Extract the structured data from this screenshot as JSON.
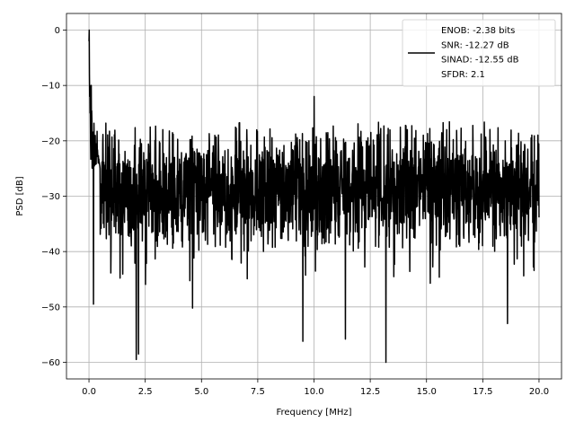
{
  "chart_data": {
    "type": "line",
    "title": "",
    "xlabel": "Frequency [MHz]",
    "ylabel": "PSD [dB]",
    "xlim": [
      -1,
      21
    ],
    "ylim": [
      -63,
      3
    ],
    "x_ticks": [
      0.0,
      2.5,
      5.0,
      7.5,
      10.0,
      12.5,
      15.0,
      17.5,
      20.0
    ],
    "x_tick_labels": [
      "0.0",
      "2.5",
      "5.0",
      "7.5",
      "10.0",
      "12.5",
      "15.0",
      "17.5",
      "20.0"
    ],
    "y_ticks": [
      0,
      -10,
      -20,
      -30,
      -40,
      -50,
      -60
    ],
    "y_tick_labels": [
      "0",
      "−10",
      "−20",
      "−30",
      "−40",
      "−50",
      "−60"
    ],
    "grid": true,
    "legend_position": "top-right",
    "series": [
      {
        "name": "ENOB: -2.38 bits\nSNR: -12.27 dB\nSINAD: -12.55 dB\nSFDR: 2.1",
        "color": "#000000",
        "x_range": [
          0,
          20
        ],
        "points": 2000,
        "noise_floor_db": -29,
        "top_envelope_db": -18,
        "bottom_envelope_db": -40,
        "peaks": [
          {
            "x": 0.0,
            "y": -2
          },
          {
            "x": 0.1,
            "y": -10
          },
          {
            "x": 10.0,
            "y": -12
          }
        ],
        "dips": [
          {
            "x": 0.2,
            "y": -49.5
          },
          {
            "x": 2.1,
            "y": -59.5
          },
          {
            "x": 2.2,
            "y": -58.5
          },
          {
            "x": 4.6,
            "y": -50.2
          },
          {
            "x": 9.5,
            "y": -56.2
          },
          {
            "x": 11.4,
            "y": -55.8
          },
          {
            "x": 13.2,
            "y": -60.0
          },
          {
            "x": 18.6,
            "y": -53.0
          }
        ]
      }
    ]
  }
}
